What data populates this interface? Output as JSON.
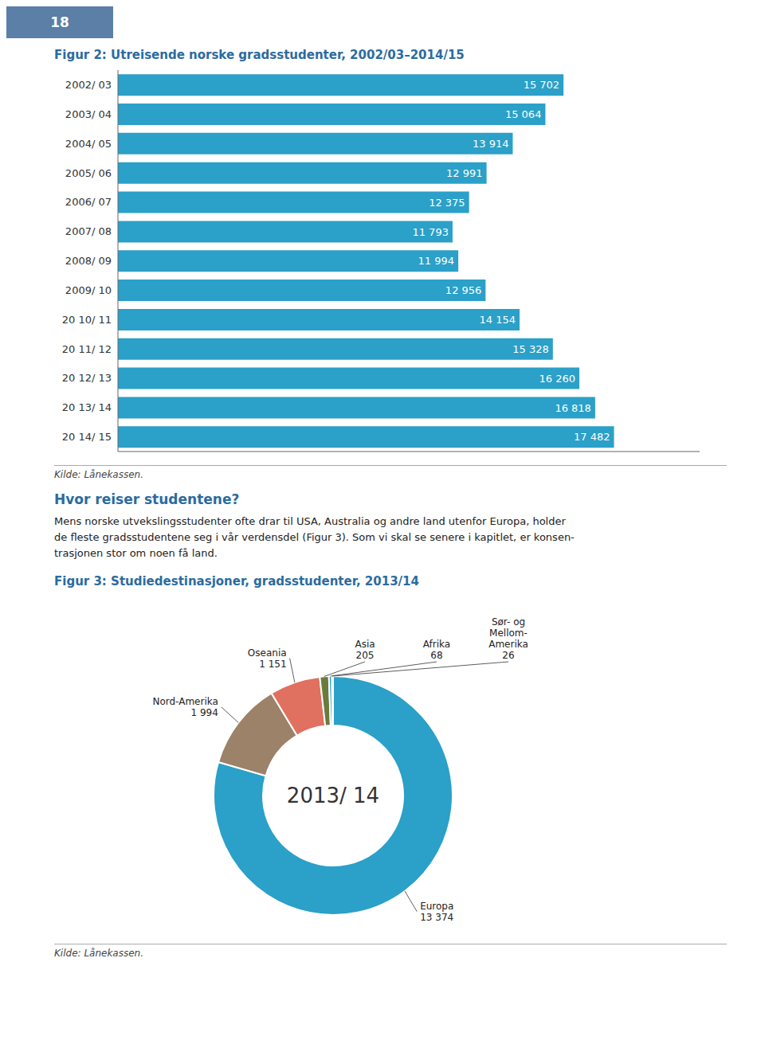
{
  "chart_data": [
    {
      "type": "bar",
      "orientation": "horizontal",
      "title": "Figur 2: Utreisende norske gradsstudenter, 2002/03–2014/15",
      "categories": [
        "2002/ 03",
        "2003/ 04",
        "2004/ 05",
        "2005/ 06",
        "2006/ 07",
        "2007/ 08",
        "2008/ 09",
        "2009/ 10",
        "20 10/ 11",
        "20 11/ 12",
        "20 12/ 13",
        "20 13/ 14",
        "20 14/ 15"
      ],
      "values": [
        15702,
        15064,
        13914,
        12991,
        12375,
        11793,
        11994,
        12956,
        14154,
        15328,
        16260,
        16818,
        17482
      ],
      "value_labels": [
        "15 702",
        "15 064",
        "13 914",
        "12 991",
        "12 375",
        "11 793",
        "11 994",
        "12 956",
        "14 154",
        "15 328",
        "16 260",
        "16 818",
        "17 482"
      ],
      "data_labels": true,
      "color": "#2BA0C8",
      "xlim": [
        0,
        20500
      ],
      "xticks": [],
      "tick_labels": "y",
      "grid": false,
      "annotations": [
        "18",
        "Kilde: Lånekassen.",
        "Hvor reiser studentene?",
        "Mens norske utvekslingsstudenter ofte drar til USA, Australia og andre land utenfor Europa, holder\nde fleste gradsstudentene seg i vår verdensdel (Figur 3). Som vi skal se senere i kapitlet, er konsen-\ntrasjonen stor om noen få land."
      ]
    },
    {
      "type": "pie",
      "title": "Figur 3: Studiedestinasjoner, gradsstudenter, 2013/14",
      "categories": [
        "Europa",
        "Nord-Amerika",
        "Oseania",
        "Asia",
        "Afrika",
        "Sør- og\nMellom-\nAmerika"
      ],
      "values": [
        13374,
        1994,
        1151,
        205,
        68,
        26
      ],
      "value_labels": [
        "13 374",
        "1 994",
        "1 151",
        "205",
        "68",
        "26"
      ],
      "data_labels": true,
      "colors": [
        "#2BA0C8",
        "#9B8268",
        "#E07060",
        "#6B7B3C",
        "#2BA0C8",
        "#2BA0C8"
      ],
      "annotations": [
        "2013/ 14",
        "Kilde: Lånekassen."
      ]
    }
  ]
}
